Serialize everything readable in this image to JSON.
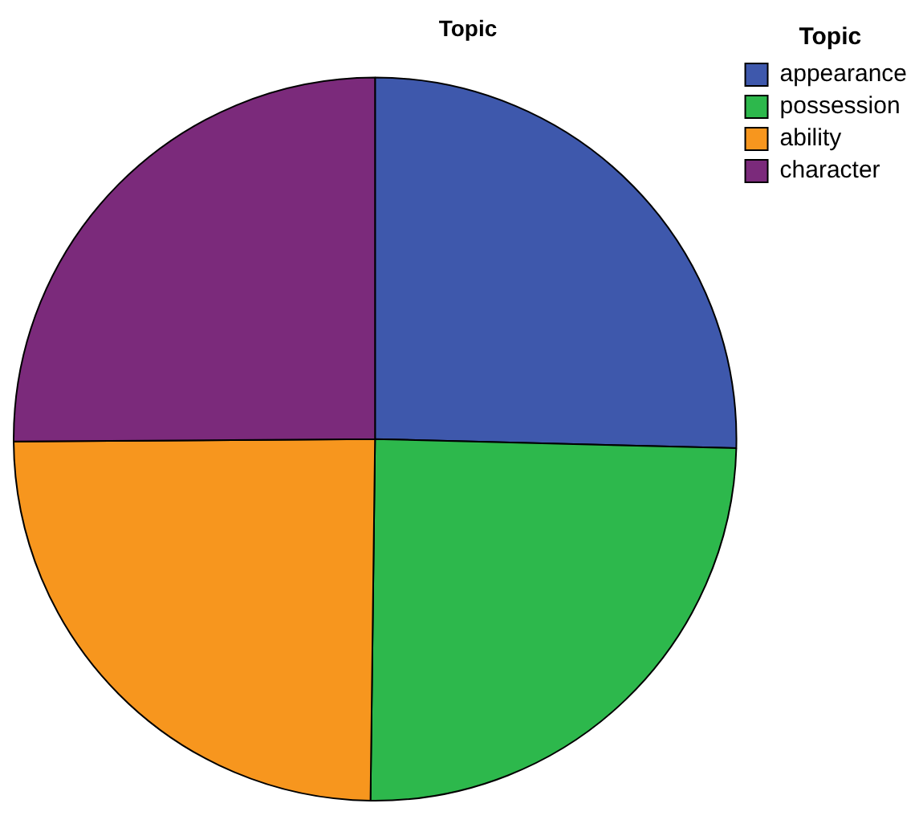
{
  "chart_data": {
    "type": "pie",
    "title": "Topic",
    "legend_title": "Topic",
    "legend": "top right",
    "categories": [
      "appearance",
      "possession",
      "ability",
      "character"
    ],
    "values": [
      25.4,
      24.8,
      24.7,
      25.1
    ],
    "colors": [
      "#3e58ac",
      "#2db84c",
      "#f7961e",
      "#7b2a7b"
    ]
  }
}
